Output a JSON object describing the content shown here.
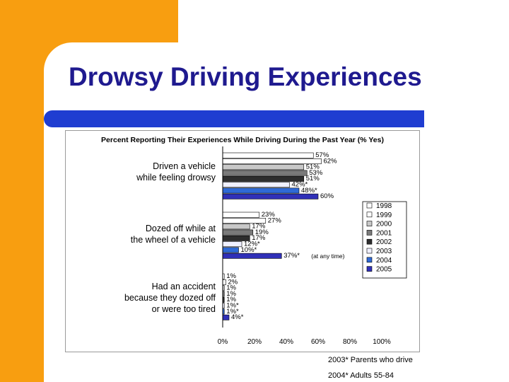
{
  "slide": {
    "title": "Drowsy Driving Experiences",
    "footnotes": [
      "2003* Parents who drive",
      "2004* Adults 55-84"
    ]
  },
  "colors": {
    "orange": "#f89e10",
    "title": "#1f1a8f",
    "accent_bar": "#1f3dd1"
  },
  "chart_data": {
    "type": "bar",
    "orientation": "horizontal",
    "title": "Percent Reporting Their Experiences While Driving During the Past Year (% Yes)",
    "categories": [
      [
        "Driven a vehicle",
        "while feeling drowsy"
      ],
      [
        "Dozed off while at",
        "the wheel of a vehicle"
      ],
      [
        "Had an accident",
        "because they dozed off",
        "or were too tired"
      ]
    ],
    "series": [
      {
        "name": "1998",
        "color": "#ffffff",
        "values": [
          57,
          23,
          1
        ],
        "labels": [
          "57%",
          "23%",
          "1%"
        ]
      },
      {
        "name": "1999",
        "color": "#ffffff",
        "values": [
          62,
          27,
          2
        ],
        "labels": [
          "62%",
          "27%",
          "2%"
        ]
      },
      {
        "name": "2000",
        "color": "#c8c8c8",
        "values": [
          51,
          17,
          1
        ],
        "labels": [
          "51%",
          "17%",
          "1%"
        ]
      },
      {
        "name": "2001",
        "color": "#7a7a7a",
        "values": [
          53,
          19,
          1
        ],
        "labels": [
          "53%",
          "19%",
          "1%"
        ]
      },
      {
        "name": "2002",
        "color": "#2e2e2e",
        "values": [
          51,
          17,
          1
        ],
        "labels": [
          "51%",
          "17%",
          "1%"
        ]
      },
      {
        "name": "2003",
        "color": "#f0f0ff",
        "values": [
          42,
          12,
          1
        ],
        "labels": [
          "42%*",
          "12%*",
          "1%*"
        ]
      },
      {
        "name": "2004",
        "color": "#2f6ad6",
        "values": [
          48,
          10,
          1
        ],
        "labels": [
          "48%*",
          "10%*",
          "1%*"
        ]
      },
      {
        "name": "2005",
        "color": "#3030b8",
        "values": [
          60,
          37,
          4
        ],
        "labels": [
          "60%",
          "37%*",
          "4%*"
        ]
      }
    ],
    "annotations": [
      {
        "category": 1,
        "series": "2005",
        "text": "(at any time)"
      }
    ],
    "xlim": [
      0,
      100
    ],
    "xticks": [
      "0%",
      "20%",
      "40%",
      "60%",
      "80%",
      "100%"
    ],
    "legend": "right",
    "grid": false
  }
}
